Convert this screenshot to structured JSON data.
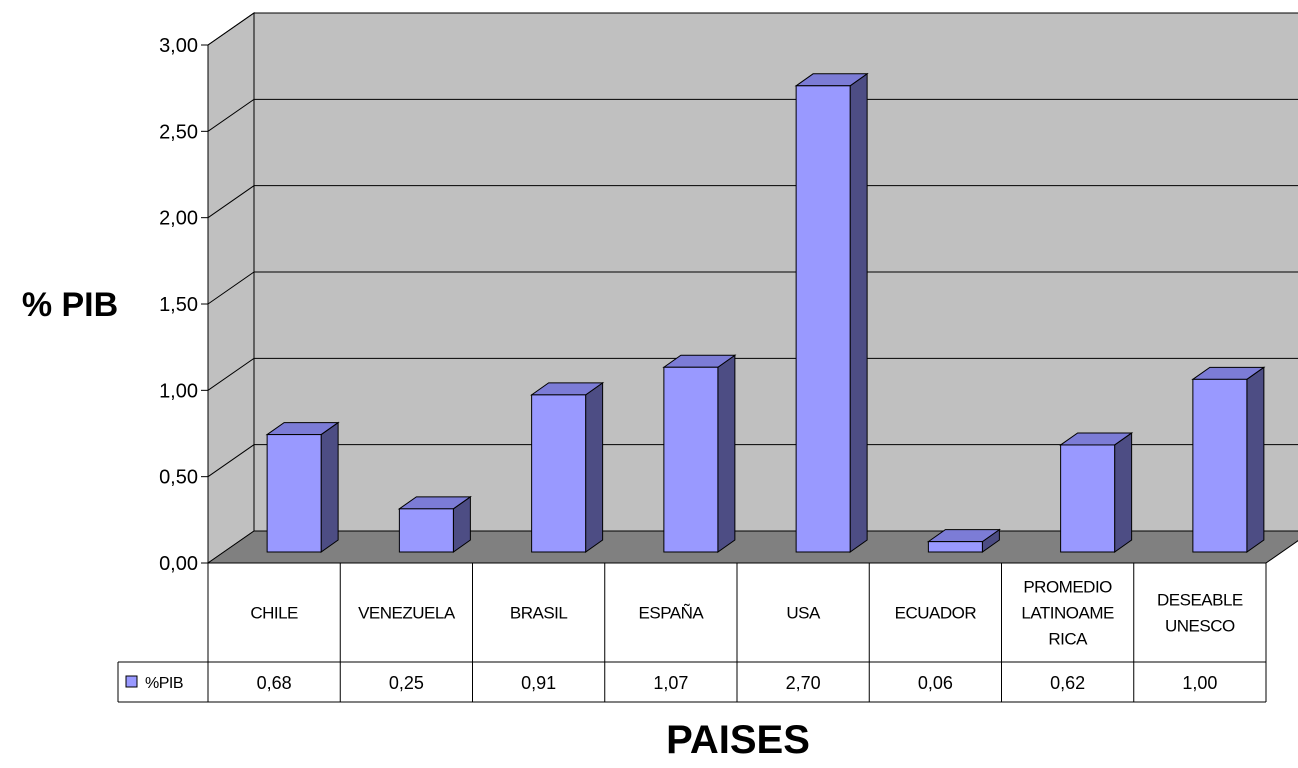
{
  "chart_data": {
    "type": "bar",
    "xlabel": "PAISES",
    "ylabel": "% PIB",
    "ylim": [
      0,
      3
    ],
    "yticks": [
      "0,00",
      "0,50",
      "1,00",
      "1,50",
      "2,00",
      "2,50",
      "3,00"
    ],
    "grid": true,
    "categories": [
      [
        "CHILE"
      ],
      [
        "VENEZUELA"
      ],
      [
        "BRASIL"
      ],
      [
        "ESPAÑA"
      ],
      [
        "USA"
      ],
      [
        "ECUADOR"
      ],
      [
        "PROMEDIO",
        "LATINOAME",
        "RICA"
      ],
      [
        "DESEABLE",
        "UNESCO"
      ]
    ],
    "series": [
      {
        "name": "%PIB",
        "values": [
          0.68,
          0.25,
          0.91,
          1.07,
          2.7,
          0.06,
          0.62,
          1.0
        ],
        "value_labels": [
          "0,68",
          "0,25",
          "0,91",
          "1,07",
          "2,70",
          "0,06",
          "0,62",
          "1,00"
        ]
      }
    ],
    "legend": "data-table",
    "colors": {
      "bar_front": "#9999ff",
      "bar_side": "#4d4d84",
      "bar_top": "#7c7cd6",
      "wall": "#c0c0c0",
      "floor": "#808080"
    }
  }
}
